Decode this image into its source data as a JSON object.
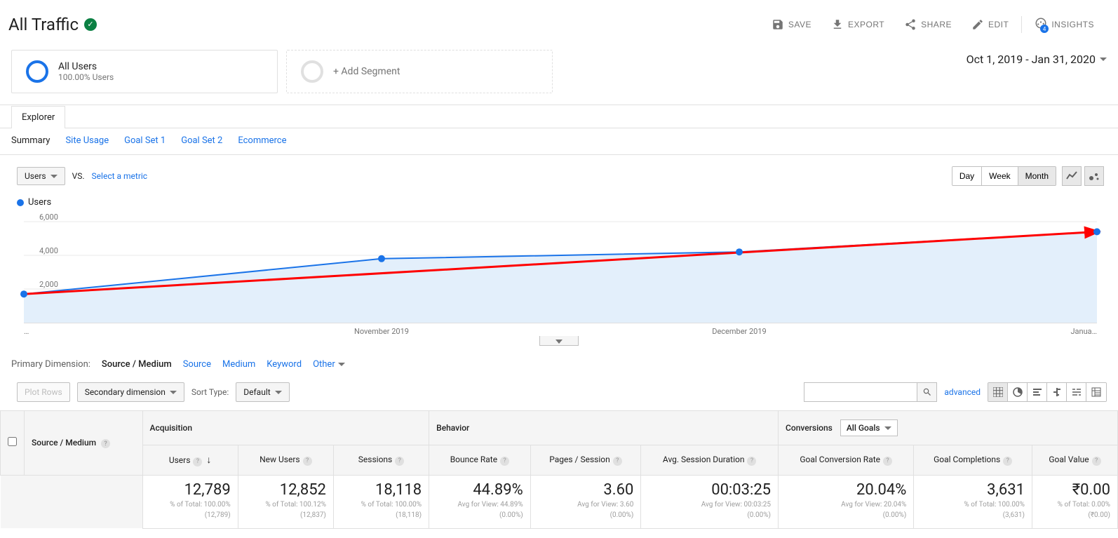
{
  "header": {
    "title": "All Traffic",
    "actions": {
      "save": "SAVE",
      "export": "EXPORT",
      "share": "SHARE",
      "edit": "EDIT",
      "insights": "INSIGHTS"
    }
  },
  "segments": {
    "all_users": {
      "name": "All Users",
      "sub": "100.00% Users"
    },
    "add": "+ Add Segment"
  },
  "date_range": "Oct 1, 2019 - Jan 31, 2020",
  "explorer_tab": "Explorer",
  "subtabs": [
    "Summary",
    "Site Usage",
    "Goal Set 1",
    "Goal Set 2",
    "Ecommerce"
  ],
  "controls": {
    "metric": "Users",
    "vs": "VS.",
    "select_metric": "Select a metric",
    "time": {
      "day": "Day",
      "week": "Week",
      "month": "Month"
    }
  },
  "legend_label": "Users",
  "chart": {
    "type": "line",
    "x_labels": [
      "…",
      "November 2019",
      "December 2019",
      "Janua…"
    ],
    "y_ticks": [
      2000,
      4000,
      6000
    ],
    "y_tick_labels": [
      "2,000",
      "4,000",
      "6,000"
    ],
    "ylim": [
      0,
      6500
    ],
    "data": [
      {
        "x": 0,
        "y": 1700,
        "label": "Oct 2019"
      },
      {
        "x": 1,
        "y": 3800,
        "label": "Nov 2019"
      },
      {
        "x": 2,
        "y": 4200,
        "label": "Dec 2019"
      },
      {
        "x": 3,
        "y": 5400,
        "label": "Jan 2020"
      }
    ],
    "line_color": "#1a73e8",
    "fill_color": "#e3effb",
    "trend_color": "#ff0000",
    "grid_color": "#e8e8e8",
    "marker_radius": 5,
    "line_width": 2,
    "trend_width": 3,
    "background_color": "#ffffff"
  },
  "prim_dim": {
    "label": "Primary Dimension:",
    "active": "Source / Medium",
    "links": [
      "Source",
      "Medium",
      "Keyword"
    ],
    "other": "Other"
  },
  "table_controls": {
    "plot_rows": "Plot Rows",
    "secondary": "Secondary dimension",
    "sort_label": "Sort Type:",
    "sort_default": "Default",
    "advanced": "advanced"
  },
  "table": {
    "dim_header": "Source / Medium",
    "groups": {
      "acq": "Acquisition",
      "beh": "Behavior",
      "conv": "Conversions",
      "conv_dd": "All Goals"
    },
    "cols": {
      "users": "Users",
      "new_users": "New Users",
      "sessions": "Sessions",
      "bounce": "Bounce Rate",
      "pages": "Pages / Session",
      "duration": "Avg. Session Duration",
      "gcr": "Goal Conversion Rate",
      "gcomp": "Goal Completions",
      "gval": "Goal Value"
    },
    "summary": {
      "users": {
        "big": "12,789",
        "sub1": "% of Total: 100.00%",
        "sub2": "(12,789)"
      },
      "new_users": {
        "big": "12,852",
        "sub1": "% of Total: 100.12%",
        "sub2": "(12,837)"
      },
      "sessions": {
        "big": "18,118",
        "sub1": "% of Total: 100.00%",
        "sub2": "(18,118)"
      },
      "bounce": {
        "big": "44.89%",
        "sub1": "Avg for View: 44.89%",
        "sub2": "(0.00%)"
      },
      "pages": {
        "big": "3.60",
        "sub1": "Avg for View: 3.60",
        "sub2": "(0.00%)"
      },
      "duration": {
        "big": "00:03:25",
        "sub1": "Avg for View: 00:03:25",
        "sub2": "(0.00%)"
      },
      "gcr": {
        "big": "20.04%",
        "sub1": "Avg for View: 20.04%",
        "sub2": "(0.00%)"
      },
      "gcomp": {
        "big": "3,631",
        "sub1": "% of Total: 100.00%",
        "sub2": "(3,631)"
      },
      "gval": {
        "big": "₹0.00",
        "sub1": "% of Total: 0.00%",
        "sub2": "(₹0.00)"
      }
    }
  }
}
